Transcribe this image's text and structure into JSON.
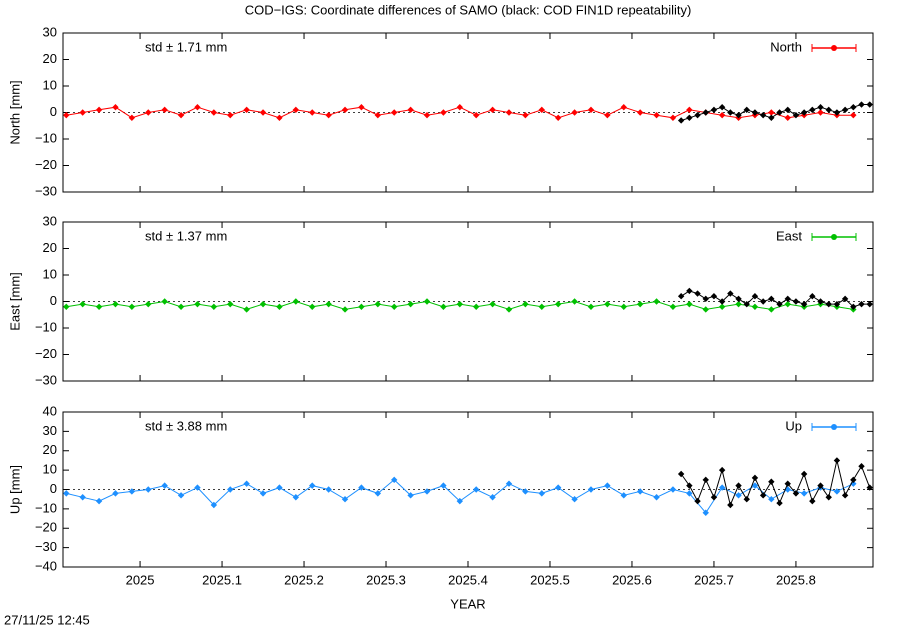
{
  "title": "COD−IGS: Coordinate differences of SAMO (black: COD FIN1D repeatability)",
  "timestamp": "27/11/25 12:45",
  "chart_data": [
    {
      "type": "line",
      "ylabel": "North [mm]",
      "annotation": "std ± 1.71 mm",
      "xlim": [
        2024.906,
        2025.894
      ],
      "xticks": [
        2025,
        2025.1,
        2025.2,
        2025.3,
        2025.4,
        2025.5,
        2025.6,
        2025.7,
        2025.8
      ],
      "ylim": [
        -30,
        30
      ],
      "yticks": [
        {
          "value": -30,
          "label": "−30"
        },
        {
          "value": -20,
          "label": "−20"
        },
        {
          "value": -10,
          "label": "−10"
        },
        0,
        10,
        20,
        30
      ],
      "series": [
        {
          "name": "North",
          "color": "#ff0000",
          "x": [
            2024.91,
            2024.93,
            2024.95,
            2024.97,
            2024.99,
            2025.01,
            2025.03,
            2025.05,
            2025.07,
            2025.09,
            2025.11,
            2025.13,
            2025.15,
            2025.17,
            2025.19,
            2025.21,
            2025.23,
            2025.25,
            2025.27,
            2025.29,
            2025.31,
            2025.33,
            2025.35,
            2025.37,
            2025.39,
            2025.41,
            2025.43,
            2025.45,
            2025.47,
            2025.49,
            2025.51,
            2025.53,
            2025.55,
            2025.57,
            2025.59,
            2025.61,
            2025.63,
            2025.65,
            2025.67,
            2025.69,
            2025.71,
            2025.73,
            2025.75,
            2025.77,
            2025.79,
            2025.81,
            2025.83,
            2025.85,
            2025.87
          ],
          "values": [
            -1,
            0,
            1,
            2,
            -2,
            0,
            1,
            -1,
            2,
            0,
            -1,
            1,
            0,
            -2,
            1,
            0,
            -1,
            1,
            2,
            -1,
            0,
            1,
            -1,
            0,
            2,
            -1,
            1,
            0,
            -1,
            1,
            -2,
            0,
            1,
            -1,
            2,
            0,
            -1,
            -2,
            1,
            0,
            -1,
            -2,
            -1,
            0,
            -2,
            -1,
            0,
            -1,
            -1
          ]
        },
        {
          "color": "#000000",
          "x": [
            2025.66,
            2025.67,
            2025.68,
            2025.69,
            2025.7,
            2025.71,
            2025.72,
            2025.73,
            2025.74,
            2025.75,
            2025.76,
            2025.77,
            2025.78,
            2025.79,
            2025.8,
            2025.81,
            2025.82,
            2025.83,
            2025.84,
            2025.85,
            2025.86,
            2025.87,
            2025.88,
            2025.89
          ],
          "values": [
            -3,
            -2,
            -1,
            0,
            1,
            2,
            0,
            -1,
            1,
            0,
            -1,
            -2,
            0,
            1,
            -1,
            0,
            1,
            2,
            1,
            0,
            1,
            2,
            3,
            3
          ]
        }
      ]
    },
    {
      "type": "line",
      "ylabel": "East [mm]",
      "annotation": "std ± 1.37 mm",
      "xlim": [
        2024.906,
        2025.894
      ],
      "xticks": [
        2025,
        2025.1,
        2025.2,
        2025.3,
        2025.4,
        2025.5,
        2025.6,
        2025.7,
        2025.8
      ],
      "ylim": [
        -30,
        30
      ],
      "yticks": [
        {
          "value": -30,
          "label": "−30"
        },
        {
          "value": -20,
          "label": "−20"
        },
        {
          "value": -10,
          "label": "−10"
        },
        0,
        10,
        20,
        30
      ],
      "series": [
        {
          "name": "East",
          "color": "#00c000",
          "x": [
            2024.91,
            2024.93,
            2024.95,
            2024.97,
            2024.99,
            2025.01,
            2025.03,
            2025.05,
            2025.07,
            2025.09,
            2025.11,
            2025.13,
            2025.15,
            2025.17,
            2025.19,
            2025.21,
            2025.23,
            2025.25,
            2025.27,
            2025.29,
            2025.31,
            2025.33,
            2025.35,
            2025.37,
            2025.39,
            2025.41,
            2025.43,
            2025.45,
            2025.47,
            2025.49,
            2025.51,
            2025.53,
            2025.55,
            2025.57,
            2025.59,
            2025.61,
            2025.63,
            2025.65,
            2025.67,
            2025.69,
            2025.71,
            2025.73,
            2025.75,
            2025.77,
            2025.79,
            2025.81,
            2025.83,
            2025.85,
            2025.87
          ],
          "values": [
            -2,
            -1,
            -2,
            -1,
            -2,
            -1,
            0,
            -2,
            -1,
            -2,
            -1,
            -3,
            -1,
            -2,
            0,
            -2,
            -1,
            -3,
            -2,
            -1,
            -2,
            -1,
            0,
            -2,
            -1,
            -2,
            -1,
            -3,
            -1,
            -2,
            -1,
            0,
            -2,
            -1,
            -2,
            -1,
            0,
            -2,
            -1,
            -3,
            -2,
            -1,
            -2,
            -3,
            -1,
            -2,
            -1,
            -2,
            -3
          ]
        },
        {
          "color": "#000000",
          "x": [
            2025.66,
            2025.67,
            2025.68,
            2025.69,
            2025.7,
            2025.71,
            2025.72,
            2025.73,
            2025.74,
            2025.75,
            2025.76,
            2025.77,
            2025.78,
            2025.79,
            2025.8,
            2025.81,
            2025.82,
            2025.83,
            2025.84,
            2025.85,
            2025.86,
            2025.87,
            2025.88,
            2025.89
          ],
          "values": [
            2,
            4,
            3,
            1,
            2,
            0,
            3,
            1,
            -1,
            2,
            0,
            1,
            -1,
            1,
            0,
            -1,
            2,
            0,
            -1,
            -1,
            1,
            -2,
            -1,
            -1
          ]
        }
      ]
    },
    {
      "type": "line",
      "ylabel": "Up [mm]",
      "annotation": "std ± 3.88 mm",
      "xlabel": "YEAR",
      "xlim": [
        2024.906,
        2025.894
      ],
      "xticks": [
        2025,
        2025.1,
        2025.2,
        2025.3,
        2025.4,
        2025.5,
        2025.6,
        2025.7,
        2025.8
      ],
      "ylim": [
        -40,
        40
      ],
      "yticks": [
        {
          "value": -40,
          "label": "−40"
        },
        {
          "value": -30,
          "label": "−30"
        },
        {
          "value": -20,
          "label": "−20"
        },
        {
          "value": -10,
          "label": "−10"
        },
        0,
        10,
        20,
        30,
        40
      ],
      "series": [
        {
          "name": "Up",
          "color": "#1e90ff",
          "x": [
            2024.91,
            2024.93,
            2024.95,
            2024.97,
            2024.99,
            2025.01,
            2025.03,
            2025.05,
            2025.07,
            2025.09,
            2025.11,
            2025.13,
            2025.15,
            2025.17,
            2025.19,
            2025.21,
            2025.23,
            2025.25,
            2025.27,
            2025.29,
            2025.31,
            2025.33,
            2025.35,
            2025.37,
            2025.39,
            2025.41,
            2025.43,
            2025.45,
            2025.47,
            2025.49,
            2025.51,
            2025.53,
            2025.55,
            2025.57,
            2025.59,
            2025.61,
            2025.63,
            2025.65,
            2025.67,
            2025.69,
            2025.71,
            2025.73,
            2025.75,
            2025.77,
            2025.79,
            2025.81,
            2025.83,
            2025.85,
            2025.87
          ],
          "values": [
            -2,
            -4,
            -6,
            -2,
            -1,
            0,
            2,
            -3,
            1,
            -8,
            0,
            3,
            -2,
            1,
            -4,
            2,
            0,
            -5,
            1,
            -2,
            5,
            -3,
            -1,
            2,
            -6,
            0,
            -4,
            3,
            -1,
            -2,
            1,
            -5,
            0,
            2,
            -3,
            -1,
            -4,
            0,
            -2,
            -12,
            1,
            -3,
            2,
            -5,
            0,
            -2,
            1,
            -1,
            3
          ]
        },
        {
          "color": "#000000",
          "x": [
            2025.66,
            2025.67,
            2025.68,
            2025.69,
            2025.7,
            2025.71,
            2025.72,
            2025.73,
            2025.74,
            2025.75,
            2025.76,
            2025.77,
            2025.78,
            2025.79,
            2025.8,
            2025.81,
            2025.82,
            2025.83,
            2025.84,
            2025.85,
            2025.86,
            2025.87,
            2025.88,
            2025.89
          ],
          "values": [
            8,
            2,
            -6,
            5,
            -4,
            10,
            -8,
            2,
            -5,
            6,
            -3,
            4,
            -7,
            3,
            -2,
            8,
            -6,
            2,
            -4,
            15,
            -3,
            5,
            12,
            1
          ]
        }
      ]
    }
  ]
}
